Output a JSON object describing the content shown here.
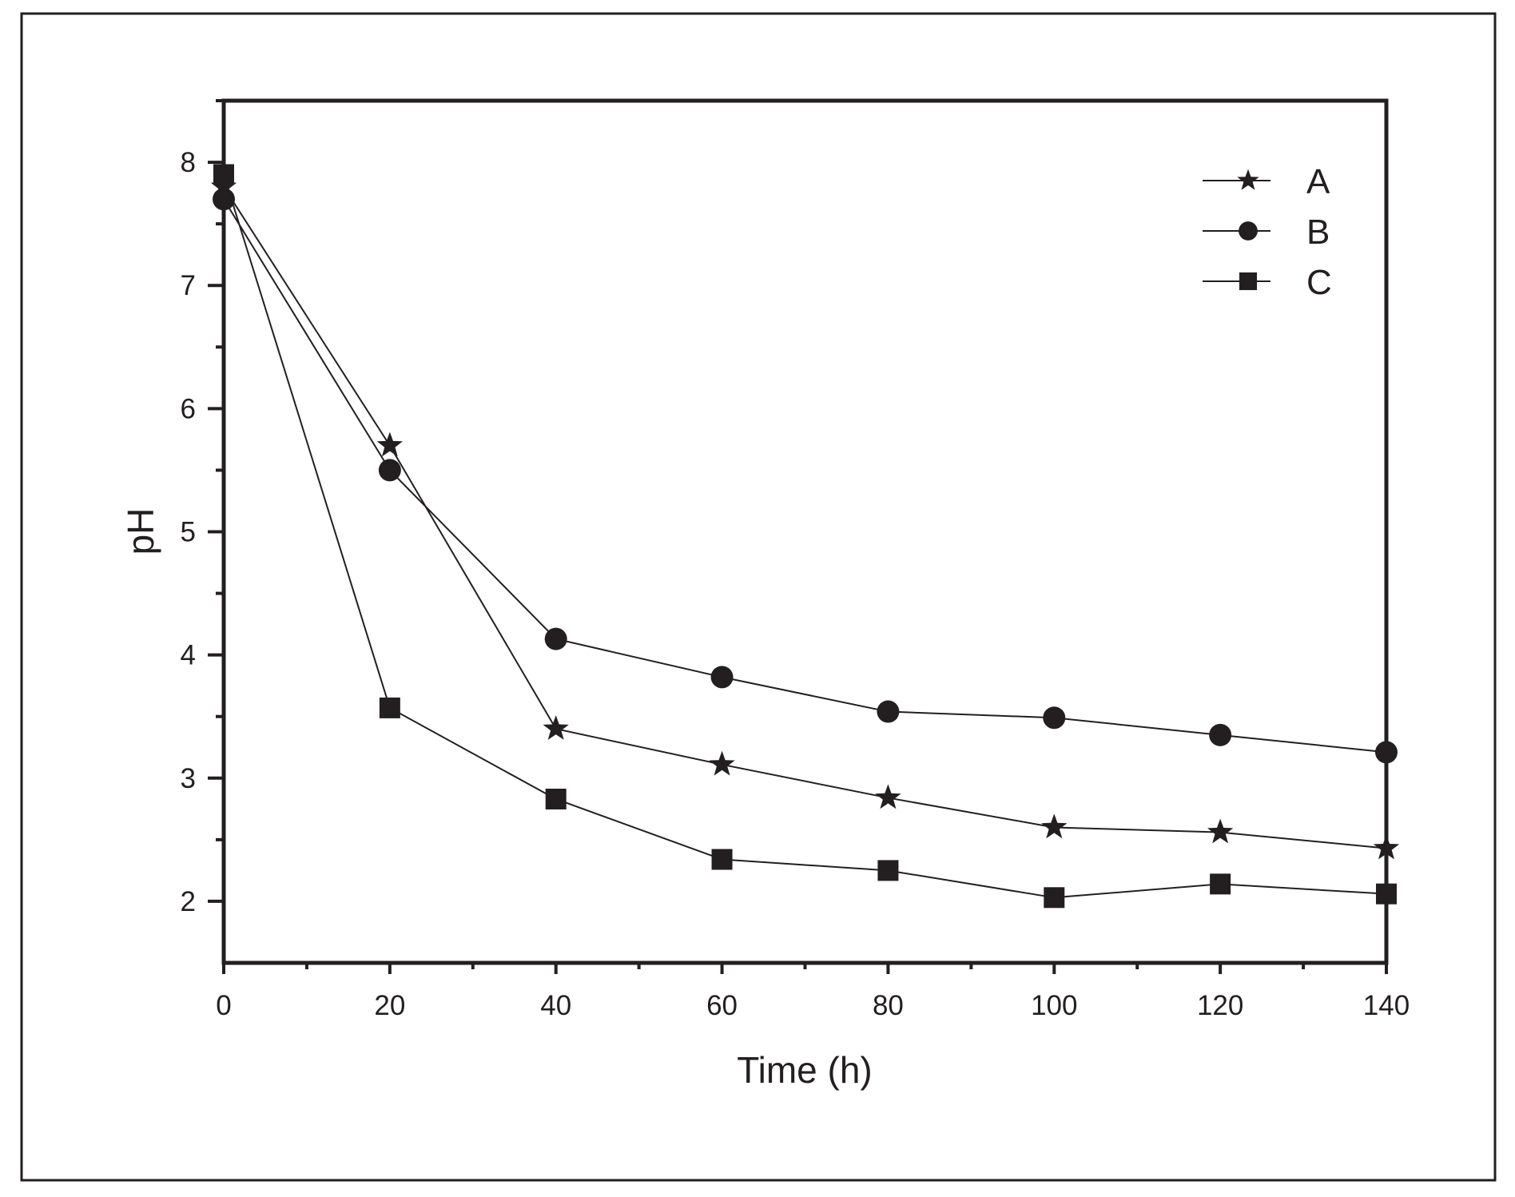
{
  "chart_data": {
    "type": "line",
    "title": "",
    "xlabel": "Time (h)",
    "ylabel": "pH",
    "xlim": [
      0,
      140
    ],
    "ylim": [
      1.5,
      8.5
    ],
    "xticks": [
      0,
      20,
      40,
      60,
      80,
      100,
      120,
      140
    ],
    "xtick_labels": [
      "0",
      "20",
      "40",
      "60",
      "80",
      "100",
      "120",
      "140"
    ],
    "yticks": [
      2,
      3,
      4,
      5,
      6,
      7,
      8
    ],
    "ytick_labels": [
      "2",
      "3",
      "4",
      "5",
      "6",
      "7",
      "8"
    ],
    "grid": false,
    "legend_position": "top-right",
    "x": [
      0,
      20,
      40,
      60,
      80,
      100,
      120,
      140
    ],
    "series": [
      {
        "name": "A",
        "marker": "star",
        "values": [
          7.8,
          5.7,
          3.4,
          3.11,
          2.84,
          2.6,
          2.56,
          2.43
        ]
      },
      {
        "name": "B",
        "marker": "circle",
        "values": [
          7.7,
          5.5,
          4.13,
          3.82,
          3.54,
          3.49,
          3.35,
          3.21
        ]
      },
      {
        "name": "C",
        "marker": "square",
        "values": [
          7.9,
          3.57,
          2.83,
          2.34,
          2.25,
          2.03,
          2.14,
          2.06
        ]
      }
    ],
    "color": "#231f20"
  }
}
